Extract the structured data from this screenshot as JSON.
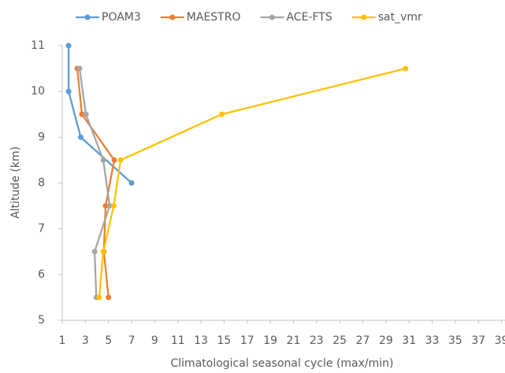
{
  "chart_data": {
    "type": "line",
    "x_label": "Climatological seasonal cycle (max/min)",
    "y_label": "Altitude (km)",
    "xlim": [
      1,
      39.3
    ],
    "xticks": [
      1,
      3,
      5,
      7,
      9,
      11,
      13,
      15,
      17,
      19,
      21,
      23,
      25,
      27,
      29,
      31,
      33,
      35,
      37,
      39
    ],
    "ylim": [
      5,
      11
    ],
    "yticks": [
      5,
      6,
      7,
      8,
      9,
      10,
      11
    ],
    "legend": "top",
    "series": [
      {
        "name": "POAM3",
        "color": "#5b9bd5",
        "x": [
          1.55,
          1.55,
          2.6,
          7.0
        ],
        "values": [
          11,
          10,
          9,
          8
        ]
      },
      {
        "name": "MAESTRO",
        "color": "#ed7d31",
        "x": [
          2.3,
          2.7,
          5.5,
          4.75,
          4.6,
          5.0
        ],
        "values": [
          10.5,
          9.5,
          8.5,
          7.5,
          6.5,
          5.5
        ]
      },
      {
        "name": "ACE-FTS",
        "color": "#a5a5a5",
        "x": [
          2.5,
          3.05,
          4.55,
          5.1,
          3.8,
          3.95
        ],
        "values": [
          10.5,
          9.5,
          8.5,
          7.5,
          6.5,
          5.5
        ]
      },
      {
        "name": "sat_vmr",
        "color": "#ffc000",
        "x": [
          4.2,
          4.55,
          5.45,
          6.05,
          14.8,
          30.7
        ],
        "values": [
          5.5,
          6.5,
          7.5,
          8.5,
          9.5,
          10.5
        ]
      }
    ]
  }
}
